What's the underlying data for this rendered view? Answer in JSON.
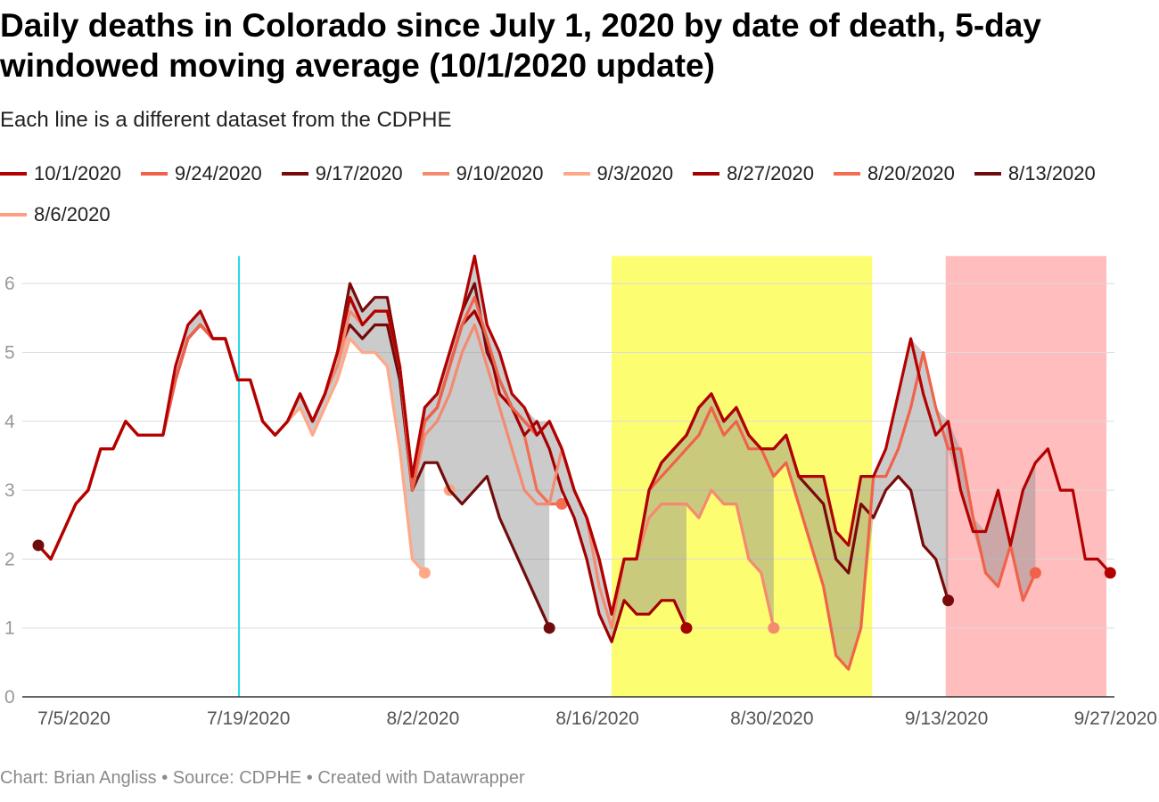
{
  "title": "Daily deaths in Colorado since July 1, 2020 by date of death, 5-day windowed moving average (10/1/2020 update)",
  "subtitle": "Each line is a different dataset from the CDPHE",
  "footer": "Chart: Brian Angliss • Source: CDPHE • Created with Datawrapper",
  "chart_data": {
    "type": "line",
    "title": "Daily deaths in Colorado since July 1, 2020 by date of death, 5-day windowed moving average (10/1/2020 update)",
    "xlabel": "",
    "ylabel": "",
    "x_start": "7/3/2020",
    "x_range": [
      "7/3/2020",
      "9/27/2020"
    ],
    "ylim": [
      0,
      6.4
    ],
    "y_ticks": [
      0,
      1,
      2,
      3,
      4,
      5,
      6
    ],
    "x_ticks": [
      {
        "label": "7/5/2020",
        "day": 2
      },
      {
        "label": "7/19/2020",
        "day": 16
      },
      {
        "label": "8/2/2020",
        "day": 30
      },
      {
        "label": "8/16/2020",
        "day": 44
      },
      {
        "label": "8/30/2020",
        "day": 58
      },
      {
        "label": "9/13/2020",
        "day": 72
      },
      {
        "label": "9/27/2020",
        "day": 86
      }
    ],
    "grid": true,
    "legend_position": "top",
    "annotations": {
      "vline_day": 16.1,
      "vline_color": "#22d8e8",
      "shaded_regions": [
        {
          "from_day": 46,
          "to_day": 66.9,
          "color": "#fdfd72"
        },
        {
          "from_day": 72.8,
          "to_day": 85.7,
          "color": "#ffbdbd"
        }
      ]
    },
    "series": [
      {
        "name": "8/6/2020",
        "color": "#ff9f80",
        "values": [
          2.2,
          2.0,
          2.4,
          2.8,
          3.0,
          3.6,
          3.6,
          4.0,
          3.8,
          3.8,
          3.8,
          4.6,
          5.2,
          5.4,
          5.2,
          5.2,
          4.6,
          4.6,
          4.0,
          3.8,
          4.0,
          4.4,
          4.0,
          4.4,
          4.8,
          5.4,
          5.2,
          5.4,
          5.4,
          4.6,
          3.0,
          3.4,
          3.4,
          3.0
        ]
      },
      {
        "name": "8/13/2020",
        "color": "#6f0d0d",
        "values": [
          2.2,
          2.0,
          2.4,
          2.8,
          3.0,
          3.6,
          3.6,
          4.0,
          3.8,
          3.8,
          3.8,
          4.6,
          5.2,
          5.4,
          5.2,
          5.2,
          4.6,
          4.6,
          4.0,
          3.8,
          4.0,
          4.4,
          4.0,
          4.4,
          5.0,
          5.4,
          5.2,
          5.4,
          5.4,
          4.6,
          3.0,
          3.4,
          3.4,
          3.0,
          2.8,
          3.0,
          3.2,
          2.6,
          2.2,
          1.8,
          1.4,
          1.0
        ]
      },
      {
        "name": "8/20/2020",
        "color": "#f46d50",
        "values": [
          2.2,
          2.0,
          2.4,
          2.8,
          3.0,
          3.6,
          3.6,
          4.0,
          3.8,
          3.8,
          3.8,
          4.6,
          5.2,
          5.4,
          5.2,
          5.2,
          4.6,
          4.6,
          4.0,
          3.8,
          4.0,
          4.4,
          4.0,
          4.4,
          5.0,
          5.8,
          5.4,
          5.6,
          5.6,
          4.8,
          3.0,
          4.0,
          4.2,
          4.8,
          5.4,
          5.6,
          5.2,
          4.4,
          4.2,
          3.8,
          3.0,
          2.8,
          2.8
        ]
      },
      {
        "name": "8/27/2020",
        "color": "#a30000",
        "values": [
          2.2,
          2.0,
          2.4,
          2.8,
          3.0,
          3.6,
          3.6,
          4.0,
          3.8,
          3.8,
          3.8,
          4.6,
          5.2,
          5.4,
          5.2,
          5.2,
          4.6,
          4.6,
          4.0,
          3.8,
          4.0,
          4.4,
          4.0,
          4.4,
          5.0,
          5.8,
          5.4,
          5.6,
          5.6,
          4.8,
          3.2,
          4.0,
          4.2,
          4.8,
          5.4,
          5.6,
          5.2,
          4.4,
          4.2,
          3.8,
          4.0,
          3.6,
          3.0,
          2.6,
          2.0,
          1.2,
          0.8,
          1.4,
          1.2,
          1.2,
          1.4,
          1.4,
          1.0
        ]
      },
      {
        "name": "9/3/2020",
        "color": "#ffa888",
        "values": [
          2.2,
          2.0,
          2.4,
          2.8,
          3.0,
          3.6,
          3.6,
          4.0,
          3.8,
          3.8,
          3.8,
          4.6,
          5.2,
          5.4,
          5.2,
          5.2,
          4.6,
          4.6,
          4.0,
          3.8,
          4.0,
          4.2,
          3.8,
          4.2,
          4.6,
          5.2,
          5.0,
          5.0,
          4.8,
          3.6,
          2.0,
          1.8
        ]
      },
      {
        "name": "9/10/2020",
        "color": "#f48a70",
        "values": [
          2.2,
          2.0,
          2.4,
          2.8,
          3.0,
          3.6,
          3.6,
          4.0,
          3.8,
          3.8,
          3.8,
          4.6,
          5.2,
          5.4,
          5.2,
          5.2,
          4.6,
          4.6,
          4.0,
          3.8,
          4.0,
          4.4,
          4.0,
          4.4,
          4.8,
          5.6,
          5.4,
          5.6,
          5.6,
          4.8,
          3.0,
          3.8,
          4.0,
          4.4,
          5.0,
          5.4,
          4.8,
          4.2,
          3.6,
          3.0,
          2.8,
          2.8,
          3.6,
          3.0,
          2.6,
          1.6,
          1.0,
          2.0,
          2.0,
          2.6,
          2.8,
          2.8,
          2.8,
          2.6,
          3.0,
          2.8,
          2.8,
          2.0,
          1.8,
          1.0
        ]
      },
      {
        "name": "9/17/2020",
        "color": "#7a0a0a",
        "values": [
          2.2,
          2.0,
          2.4,
          2.8,
          3.0,
          3.6,
          3.6,
          4.0,
          3.8,
          3.8,
          3.8,
          4.6,
          5.2,
          5.4,
          5.2,
          5.2,
          4.6,
          4.6,
          4.0,
          3.8,
          4.0,
          4.4,
          4.0,
          4.4,
          5.0,
          6.0,
          5.6,
          5.8,
          5.8,
          4.8,
          3.0,
          4.2,
          4.4,
          5.0,
          5.6,
          6.0,
          5.0,
          4.6,
          4.2,
          4.0,
          3.8,
          4.0,
          3.6,
          3.0,
          2.6,
          2.0,
          1.2,
          2.0,
          2.0,
          3.0,
          3.4,
          3.6,
          3.8,
          4.2,
          4.4,
          4.0,
          4.2,
          3.8,
          3.6,
          3.6,
          3.8,
          3.2,
          3.0,
          2.8,
          2.0,
          1.8,
          2.8,
          2.6,
          3.0,
          3.2,
          3.0,
          2.2,
          2.0,
          1.4
        ]
      },
      {
        "name": "9/24/2020",
        "color": "#f0624a",
        "values": [
          2.2,
          2.0,
          2.4,
          2.8,
          3.0,
          3.6,
          3.6,
          4.0,
          3.8,
          3.8,
          3.8,
          4.6,
          5.2,
          5.4,
          5.2,
          5.2,
          4.6,
          4.6,
          4.0,
          3.8,
          4.0,
          4.4,
          4.0,
          4.4,
          5.0,
          5.8,
          5.4,
          5.6,
          5.6,
          4.8,
          3.0,
          4.0,
          4.2,
          4.8,
          5.4,
          5.8,
          5.2,
          4.6,
          4.2,
          4.0,
          3.8,
          4.0,
          3.6,
          3.0,
          2.6,
          2.0,
          1.2,
          2.0,
          2.0,
          3.0,
          3.2,
          3.4,
          3.6,
          3.8,
          4.2,
          3.8,
          4.0,
          3.6,
          3.6,
          3.2,
          3.4,
          2.8,
          2.2,
          1.6,
          0.6,
          0.4,
          1.0,
          3.2,
          3.2,
          3.6,
          4.2,
          5.0,
          4.2,
          3.6,
          3.6,
          2.6,
          1.8,
          1.6,
          2.2,
          1.4,
          1.8
        ]
      },
      {
        "name": "10/1/2020",
        "color": "#b30000",
        "values": [
          2.2,
          2.0,
          2.4,
          2.8,
          3.0,
          3.6,
          3.6,
          4.0,
          3.8,
          3.8,
          3.8,
          4.8,
          5.4,
          5.6,
          5.2,
          5.2,
          4.6,
          4.6,
          4.0,
          3.8,
          4.0,
          4.4,
          4.0,
          4.4,
          5.0,
          5.8,
          5.4,
          5.6,
          5.6,
          4.8,
          3.2,
          4.2,
          4.4,
          5.0,
          5.6,
          6.4,
          5.4,
          5.0,
          4.4,
          4.2,
          3.8,
          4.0,
          3.6,
          3.0,
          2.6,
          2.0,
          1.2,
          2.0,
          2.0,
          3.0,
          3.4,
          3.6,
          3.8,
          4.2,
          4.4,
          4.0,
          4.2,
          3.8,
          3.6,
          3.6,
          3.8,
          3.2,
          3.2,
          3.2,
          2.4,
          2.2,
          3.2,
          3.2,
          3.6,
          4.4,
          5.2,
          4.4,
          3.8,
          4.0,
          3.0,
          2.4,
          2.4,
          3.0,
          2.2,
          3.0,
          3.4,
          3.6,
          3.0,
          3.0,
          2.0,
          2.0,
          1.8
        ]
      }
    ],
    "legend_order": [
      "10/1/2020",
      "9/24/2020",
      "9/17/2020",
      "9/10/2020",
      "9/3/2020",
      "8/27/2020",
      "8/20/2020",
      "8/13/2020",
      "8/6/2020"
    ],
    "band_fill_color": "#8c8c8c",
    "band_fill_opacity": 0.45
  }
}
